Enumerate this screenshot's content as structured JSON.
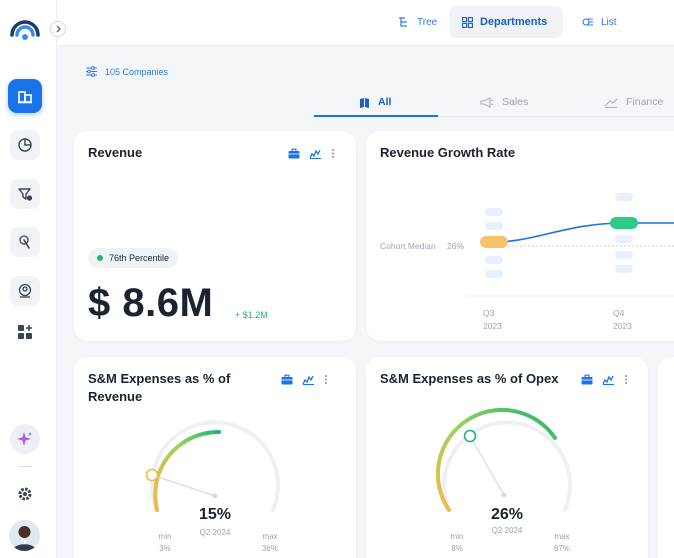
{
  "topbar": {
    "tabs": [
      {
        "label": "Tree",
        "icon": "tree-icon"
      },
      {
        "label": "Departments",
        "icon": "grid-icon",
        "active": true
      },
      {
        "label": "List",
        "icon": "list-icon"
      }
    ]
  },
  "filter": {
    "label": "105 Companies",
    "icon": "sliders-icon"
  },
  "categories": [
    {
      "label": "All",
      "icon": "book-icon",
      "active": true
    },
    {
      "label": "Sales",
      "icon": "megaphone-icon"
    },
    {
      "label": "Finance",
      "icon": "money-icon"
    }
  ],
  "revenue_card": {
    "title": "Revenue",
    "percentile": "76th Percentile",
    "value": "$ 8.6M",
    "delta": "+ $1.2M"
  },
  "growth_card": {
    "title": "Revenue Growth Rate",
    "cohort_label": "Cohort Median",
    "cohort_value": "26%",
    "periods": [
      {
        "quarter": "Q3",
        "year": "2023"
      },
      {
        "quarter": "Q4",
        "year": "2023"
      }
    ]
  },
  "sm_revenue_card": {
    "title": "S&M Expenses as % of Revenue",
    "value": "15%",
    "period": "Q2 2024",
    "min_label": "min",
    "min_value": "3%",
    "max_label": "max",
    "max_value": "36%",
    "level": 0.36
  },
  "sm_opex_card": {
    "title": "S&M Expenses as % of Opex",
    "value": "26%",
    "period": "Q2 2024",
    "min_label": "min",
    "min_value": "8%",
    "max_label": "max",
    "max_value": "67%",
    "level": 0.3
  },
  "colors": {
    "accent": "#1a73e8",
    "positive": "#22b573",
    "warning": "#f5b74a"
  }
}
